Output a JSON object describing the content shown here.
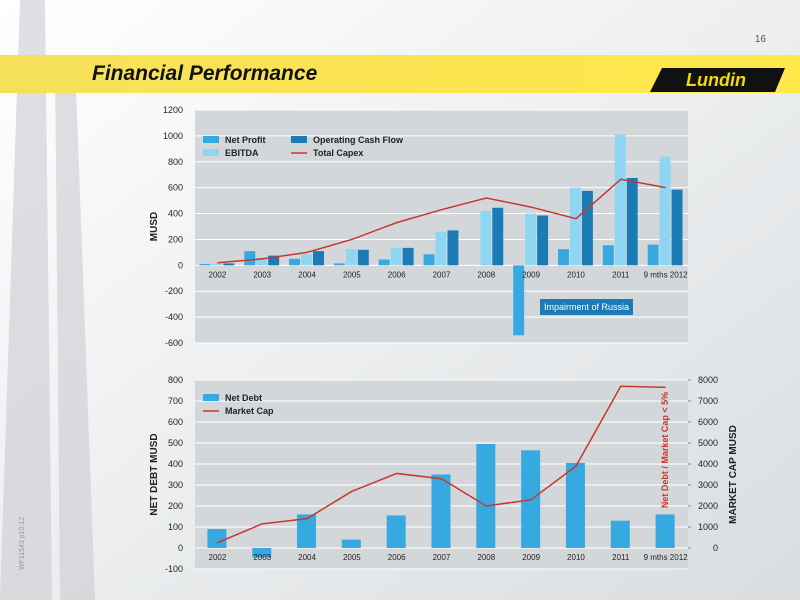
{
  "header": {
    "page_number": "16",
    "title": "Financial Performance",
    "logo": "Lundin",
    "code": "WF11543 p10.12"
  },
  "chart_data": [
    {
      "type": "combo",
      "ylabel": "MUSD",
      "categories": [
        "2002",
        "2003",
        "2004",
        "2005",
        "2006",
        "2007",
        "2008",
        "2009",
        "2010",
        "2011",
        "9 mths 2012"
      ],
      "ylim": [
        -600,
        1200
      ],
      "yticks": [
        -600,
        -400,
        -200,
        0,
        200,
        400,
        600,
        800,
        1000,
        1200
      ],
      "grid": true,
      "annotation": "Impairment of Russia",
      "series": [
        {
          "name": "Net Profit",
          "type": "bar",
          "color": "#36a9e1",
          "values": [
            10,
            110,
            50,
            15,
            45,
            85,
            0,
            -540,
            125,
            155,
            160
          ]
        },
        {
          "name": "EBITDA",
          "type": "bar",
          "color": "#8fd6f2",
          "values": [
            15,
            60,
            85,
            125,
            135,
            260,
            420,
            400,
            600,
            1010,
            840
          ]
        },
        {
          "name": "Operating Cash Flow",
          "type": "bar",
          "color": "#1c7bb4",
          "values": [
            15,
            75,
            110,
            120,
            135,
            270,
            445,
            385,
            575,
            675,
            585
          ]
        },
        {
          "name": "Total Capex",
          "type": "line",
          "color": "#c8372d",
          "values": [
            20,
            50,
            100,
            200,
            330,
            430,
            520,
            450,
            360,
            665,
            600
          ]
        }
      ]
    },
    {
      "type": "combo",
      "ylabel": "NET DEBT MUSD",
      "y2label": "MARKET CAP MUSD",
      "categories": [
        "2002",
        "2003",
        "2004",
        "2005",
        "2006",
        "2007",
        "2008",
        "2009",
        "2010",
        "2011",
        "9 mths 2012"
      ],
      "ylim": [
        -100,
        800
      ],
      "yticks": [
        -100,
        0,
        100,
        200,
        300,
        400,
        500,
        600,
        700,
        800
      ],
      "y2lim": [
        -1000,
        8000
      ],
      "y2ticks": [
        0,
        1000,
        2000,
        3000,
        4000,
        5000,
        6000,
        7000,
        8000
      ],
      "grid": true,
      "annotation": "Net Debt / Market Cap < 5%",
      "series": [
        {
          "name": "Net Debt",
          "type": "bar",
          "color": "#36a9e1",
          "values": [
            90,
            -45,
            160,
            40,
            155,
            350,
            495,
            465,
            405,
            130,
            160
          ]
        },
        {
          "name": "Market Cap",
          "type": "line",
          "axis": "y2",
          "color": "#c8372d",
          "values": [
            250,
            1150,
            1400,
            2700,
            3550,
            3300,
            2000,
            2300,
            3900,
            7700,
            7650
          ]
        }
      ]
    }
  ]
}
